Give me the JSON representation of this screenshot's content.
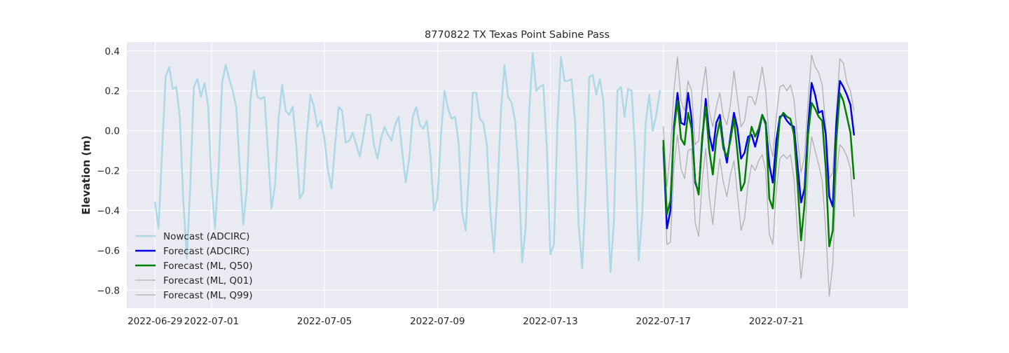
{
  "chart_data": {
    "type": "line",
    "title": "8770822 TX Texas Point Sabine Pass",
    "xlabel": "",
    "ylabel": "Elevation (m)",
    "ylim": [
      -0.89,
      0.445
    ],
    "xlim": [
      "2022-06-28T00:00",
      "2022-07-25T16:00"
    ],
    "yticks": [
      0.4,
      0.2,
      0.0,
      -0.2,
      -0.4,
      -0.6,
      -0.8
    ],
    "ytick_labels": [
      "0.4",
      "0.2",
      "0.0",
      "−0.2",
      "−0.4",
      "−0.6",
      "−0.8"
    ],
    "xticks": [
      "2022-06-29",
      "2022-07-01",
      "2022-07-05",
      "2022-07-09",
      "2022-07-13",
      "2022-07-17",
      "2022-07-21"
    ],
    "xtick_labels": [
      "2022-06-29",
      "2022-07-01",
      "2022-07-05",
      "2022-07-09",
      "2022-07-13",
      "2022-07-17",
      "2022-07-21"
    ],
    "grid": true,
    "legend_position": "lower-left",
    "series": [
      {
        "name": "Nowcast (ADCIRC)",
        "color": "#add8e6",
        "width": 2.5,
        "start": "2022-06-29T00:00",
        "step_hours": 3,
        "values": [
          -0.36,
          -0.49,
          -0.1,
          0.27,
          0.32,
          0.21,
          0.22,
          0.07,
          -0.35,
          -0.64,
          -0.26,
          0.22,
          0.26,
          0.17,
          0.24,
          0.13,
          -0.27,
          -0.49,
          -0.19,
          0.24,
          0.33,
          0.26,
          0.2,
          0.12,
          -0.19,
          -0.47,
          -0.29,
          0.15,
          0.3,
          0.17,
          0.16,
          0.17,
          -0.11,
          -0.39,
          -0.27,
          0.06,
          0.23,
          0.1,
          0.08,
          0.12,
          -0.07,
          -0.34,
          -0.31,
          -0.02,
          0.18,
          0.12,
          0.02,
          0.05,
          -0.04,
          -0.2,
          -0.29,
          -0.07,
          0.12,
          0.1,
          -0.06,
          -0.05,
          -0.01,
          -0.07,
          -0.13,
          -0.03,
          0.08,
          0.08,
          -0.07,
          -0.14,
          -0.04,
          0.02,
          -0.02,
          -0.05,
          0.03,
          0.07,
          -0.1,
          -0.26,
          -0.14,
          0.07,
          0.12,
          0.03,
          0.01,
          0.05,
          -0.12,
          -0.4,
          -0.34,
          -0.02,
          0.2,
          0.11,
          0.06,
          0.07,
          -0.06,
          -0.41,
          -0.5,
          -0.18,
          0.19,
          0.19,
          0.06,
          0.04,
          -0.07,
          -0.41,
          -0.61,
          -0.3,
          0.1,
          0.33,
          0.17,
          0.14,
          0.05,
          -0.21,
          -0.66,
          -0.48,
          0.1,
          0.39,
          0.2,
          0.22,
          0.23,
          -0.09,
          -0.62,
          -0.57,
          0.04,
          0.37,
          0.25,
          0.25,
          0.26,
          0.04,
          -0.47,
          -0.69,
          -0.3,
          0.27,
          0.28,
          0.18,
          0.26,
          0.15,
          -0.27,
          -0.71,
          -0.45,
          0.2,
          0.22,
          0.07,
          0.21,
          0.2,
          -0.1,
          -0.65,
          -0.42,
          0.04,
          0.18,
          0.0,
          0.08,
          0.2
        ]
      },
      {
        "name": "Forecast (ADCIRC)",
        "color": "#0000ee",
        "width": 2.5,
        "start": "2022-07-17T00:00",
        "step_hours": 3,
        "values": [
          -0.08,
          -0.49,
          -0.4,
          0.02,
          0.19,
          0.04,
          0.03,
          0.19,
          0.06,
          -0.26,
          -0.31,
          -0.05,
          0.16,
          -0.02,
          -0.1,
          0.04,
          0.08,
          -0.07,
          -0.16,
          -0.03,
          0.09,
          0.01,
          -0.14,
          -0.11,
          -0.03,
          -0.02,
          -0.08,
          -0.01,
          0.08,
          0.04,
          -0.17,
          -0.26,
          -0.05,
          0.07,
          0.08,
          0.05,
          0.03,
          0.02,
          -0.17,
          -0.36,
          -0.29,
          0.02,
          0.24,
          0.18,
          0.09,
          0.1,
          -0.02,
          -0.33,
          -0.38,
          0.04,
          0.25,
          0.22,
          0.18,
          0.13,
          -0.02
        ]
      },
      {
        "name": "Forecast (ML, Q50)",
        "color": "#008000",
        "width": 2.5,
        "start": "2022-07-17T00:00",
        "step_hours": 3,
        "values": [
          -0.05,
          -0.42,
          -0.35,
          0.0,
          0.15,
          -0.04,
          -0.07,
          0.09,
          0.01,
          -0.25,
          -0.32,
          -0.03,
          0.12,
          -0.1,
          -0.22,
          -0.04,
          0.05,
          -0.09,
          -0.13,
          -0.05,
          0.06,
          -0.11,
          -0.3,
          -0.26,
          -0.08,
          0.02,
          -0.03,
          0.01,
          0.08,
          0.03,
          -0.34,
          -0.39,
          -0.14,
          0.06,
          0.09,
          0.07,
          0.06,
          -0.02,
          -0.26,
          -0.55,
          -0.37,
          -0.02,
          0.14,
          0.11,
          0.07,
          0.05,
          -0.19,
          -0.58,
          -0.5,
          -0.05,
          0.19,
          0.15,
          0.07,
          -0.01,
          -0.24
        ]
      },
      {
        "name": "Forecast (ML, Q01)",
        "color": "#b0b0b0",
        "width": 1.3,
        "start": "2022-07-17T00:00",
        "step_hours": 3,
        "values": [
          -0.1,
          -0.57,
          -0.56,
          -0.18,
          -0.02,
          -0.19,
          -0.24,
          -0.1,
          -0.09,
          -0.46,
          -0.53,
          -0.25,
          -0.09,
          -0.33,
          -0.47,
          -0.28,
          -0.14,
          -0.26,
          -0.33,
          -0.22,
          -0.15,
          -0.32,
          -0.5,
          -0.44,
          -0.27,
          -0.17,
          -0.2,
          -0.15,
          -0.12,
          -0.2,
          -0.52,
          -0.57,
          -0.3,
          -0.14,
          -0.12,
          -0.14,
          -0.12,
          -0.24,
          -0.51,
          -0.74,
          -0.58,
          -0.2,
          -0.03,
          -0.1,
          -0.17,
          -0.25,
          -0.5,
          -0.83,
          -0.67,
          -0.22,
          -0.07,
          -0.09,
          -0.13,
          -0.19,
          -0.43
        ]
      },
      {
        "name": "Forecast (ML, Q99)",
        "color": "#b0b0b0",
        "width": 1.3,
        "start": "2022-07-17T00:00",
        "step_hours": 3,
        "values": [
          0.02,
          -0.28,
          -0.1,
          0.2,
          0.37,
          0.15,
          0.1,
          0.25,
          0.2,
          -0.07,
          -0.05,
          0.2,
          0.32,
          0.1,
          0.02,
          0.12,
          0.19,
          0.07,
          0.03,
          0.13,
          0.3,
          0.16,
          0.02,
          0.05,
          0.17,
          0.17,
          0.13,
          0.21,
          0.32,
          0.2,
          -0.05,
          -0.13,
          0.07,
          0.22,
          0.23,
          0.2,
          0.23,
          0.16,
          -0.04,
          -0.21,
          -0.13,
          0.15,
          0.38,
          0.32,
          0.29,
          0.23,
          0.02,
          -0.24,
          -0.21,
          0.1,
          0.36,
          0.34,
          0.24,
          0.2,
          0.1
        ]
      }
    ]
  }
}
